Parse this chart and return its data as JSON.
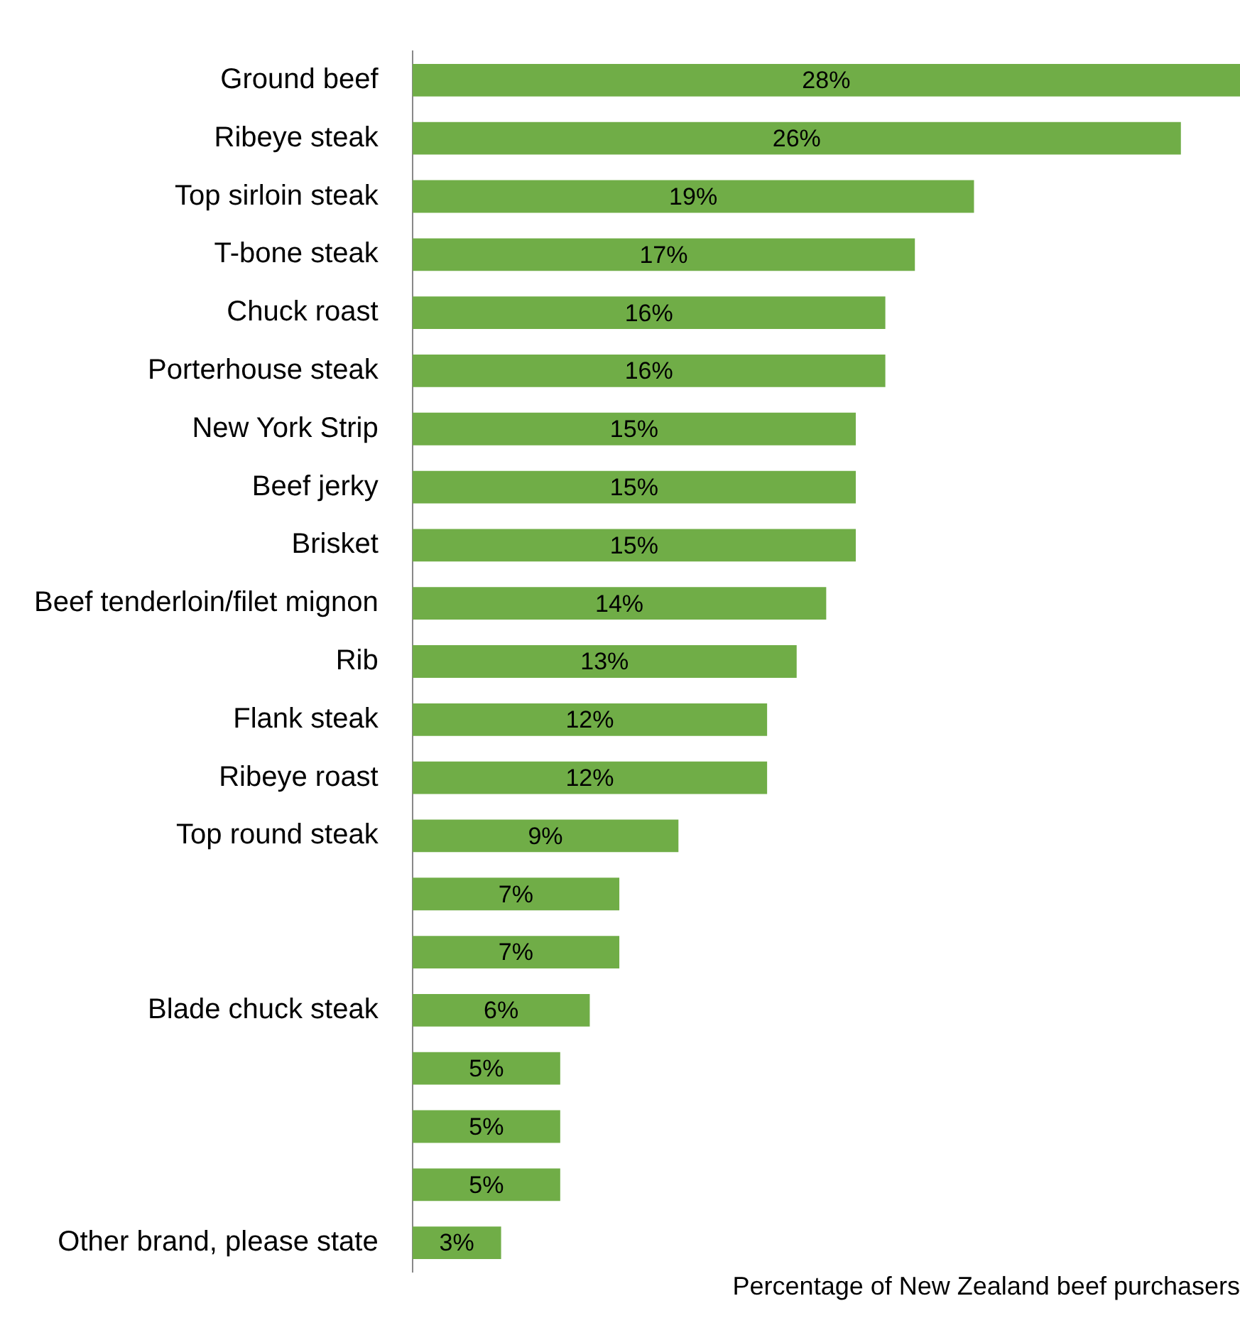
{
  "chart_data": {
    "type": "bar",
    "orientation": "horizontal",
    "xlabel": "Percentage of New Zealand beef purchasers",
    "categories": [
      "Ground beef",
      "Ribeye steak",
      "Top sirloin steak",
      "T-bone steak",
      "Chuck roast",
      "Porterhouse steak",
      "New York Strip",
      "Beef jerky",
      "Brisket",
      "Beef tenderloin/filet mignon",
      "Rib",
      "Flank steak",
      "Ribeye roast",
      "Top round steak",
      null,
      null,
      "Blade chuck steak",
      null,
      null,
      null,
      "Other brand, please state"
    ],
    "values": [
      28,
      26,
      19,
      17,
      16,
      16,
      15,
      15,
      15,
      14,
      13,
      12,
      12,
      9,
      7,
      7,
      6,
      5,
      5,
      5,
      3
    ],
    "value_labels": [
      "28%",
      "26%",
      "19%",
      "17%",
      "16%",
      "16%",
      "15%",
      "15%",
      "15%",
      "14%",
      "13%",
      "12%",
      "12%",
      "9%",
      "7%",
      "7%",
      "6%",
      "5%",
      "5%",
      "5%",
      "3%"
    ],
    "color": "#70ad47",
    "grid": false,
    "legend": false
  }
}
